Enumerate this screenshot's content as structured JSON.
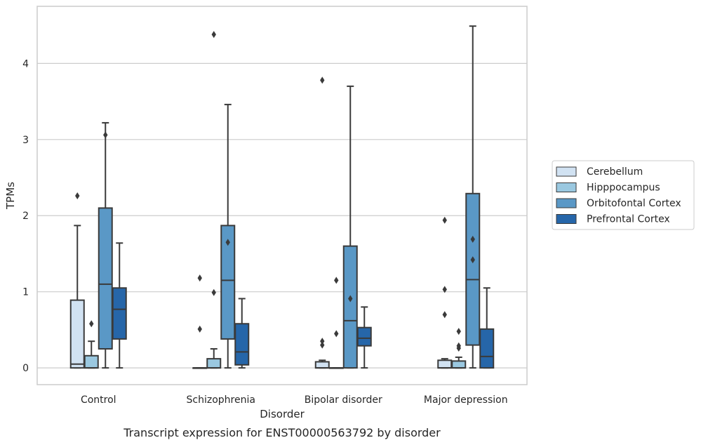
{
  "chart_data": {
    "type": "box",
    "caption": "Transcript expression for ENST00000563792 by disorder",
    "xlabel": "Disorder",
    "ylabel": "TPMs",
    "ylim": [
      -0.22,
      4.75
    ],
    "yticks": [
      0,
      1,
      2,
      3,
      4
    ],
    "grid": "horizontal",
    "legend_position": "right",
    "categories": [
      "Control",
      "Schizophrenia",
      "Bipolar disorder",
      "Major depression"
    ],
    "series": [
      {
        "name": "Cerebellum",
        "color": "#d1e2f2",
        "boxes": [
          {
            "category": "Control",
            "whisker_low": 0,
            "q1": 0,
            "median": 0.05,
            "q3": 0.89,
            "whisker_high": 1.87,
            "outliers": [
              2.26
            ]
          },
          {
            "category": "Schizophrenia",
            "whisker_low": 0,
            "q1": 0,
            "median": 0,
            "q3": 0,
            "whisker_high": 0,
            "outliers": [
              0.51,
              1.18
            ]
          },
          {
            "category": "Bipolar disorder",
            "whisker_low": 0,
            "q1": 0,
            "median": 0,
            "q3": 0.08,
            "whisker_high": 0.1,
            "outliers": [
              0.3,
              0.35,
              3.78
            ]
          },
          {
            "category": "Major depression",
            "whisker_low": 0,
            "q1": 0,
            "median": 0,
            "q3": 0.1,
            "whisker_high": 0.12,
            "outliers": [
              0.7,
              1.03,
              1.94
            ]
          }
        ]
      },
      {
        "name": "Hipppocampus",
        "color": "#9ac8e0",
        "boxes": [
          {
            "category": "Control",
            "whisker_low": 0,
            "q1": 0,
            "median": 0,
            "q3": 0.16,
            "whisker_high": 0.35,
            "outliers": [
              0.58
            ]
          },
          {
            "category": "Schizophrenia",
            "whisker_low": 0,
            "q1": 0,
            "median": 0,
            "q3": 0.12,
            "whisker_high": 0.25,
            "outliers": [
              0.99,
              4.38
            ]
          },
          {
            "category": "Bipolar disorder",
            "whisker_low": 0,
            "q1": 0,
            "median": 0,
            "q3": 0,
            "whisker_high": 0,
            "outliers": [
              0.45,
              1.15
            ]
          },
          {
            "category": "Major depression",
            "whisker_low": 0,
            "q1": 0,
            "median": 0,
            "q3": 0.09,
            "whisker_high": 0.14,
            "outliers": [
              0.26,
              0.29,
              0.48
            ]
          }
        ]
      },
      {
        "name": "Orbitofontal Cortex",
        "color": "#5a98c6",
        "boxes": [
          {
            "category": "Control",
            "whisker_low": 0,
            "q1": 0.25,
            "median": 1.1,
            "q3": 2.1,
            "whisker_high": 3.22,
            "outliers": [
              3.06
            ]
          },
          {
            "category": "Schizophrenia",
            "whisker_low": 0,
            "q1": 0.38,
            "median": 1.15,
            "q3": 1.87,
            "whisker_high": 3.46,
            "outliers": [
              1.65
            ]
          },
          {
            "category": "Bipolar disorder",
            "whisker_low": 0,
            "q1": 0,
            "median": 0.62,
            "q3": 1.6,
            "whisker_high": 3.7,
            "outliers": [
              0.91
            ]
          },
          {
            "category": "Major depression",
            "whisker_low": 0,
            "q1": 0.3,
            "median": 1.16,
            "q3": 2.29,
            "whisker_high": 4.49,
            "outliers": [
              1.42,
              1.69
            ]
          }
        ]
      },
      {
        "name": "Prefrontal Cortex",
        "color": "#2666a9",
        "boxes": [
          {
            "category": "Control",
            "whisker_low": 0,
            "q1": 0.38,
            "median": 0.77,
            "q3": 1.05,
            "whisker_high": 1.64,
            "outliers": []
          },
          {
            "category": "Schizophrenia",
            "whisker_low": 0,
            "q1": 0.04,
            "median": 0.21,
            "q3": 0.58,
            "whisker_high": 0.91,
            "outliers": []
          },
          {
            "category": "Bipolar disorder",
            "whisker_low": 0,
            "q1": 0.29,
            "median": 0.39,
            "q3": 0.53,
            "whisker_high": 0.8,
            "outliers": []
          },
          {
            "category": "Major depression",
            "whisker_low": 0,
            "q1": 0,
            "median": 0.15,
            "q3": 0.51,
            "whisker_high": 1.05,
            "outliers": []
          }
        ]
      }
    ]
  }
}
